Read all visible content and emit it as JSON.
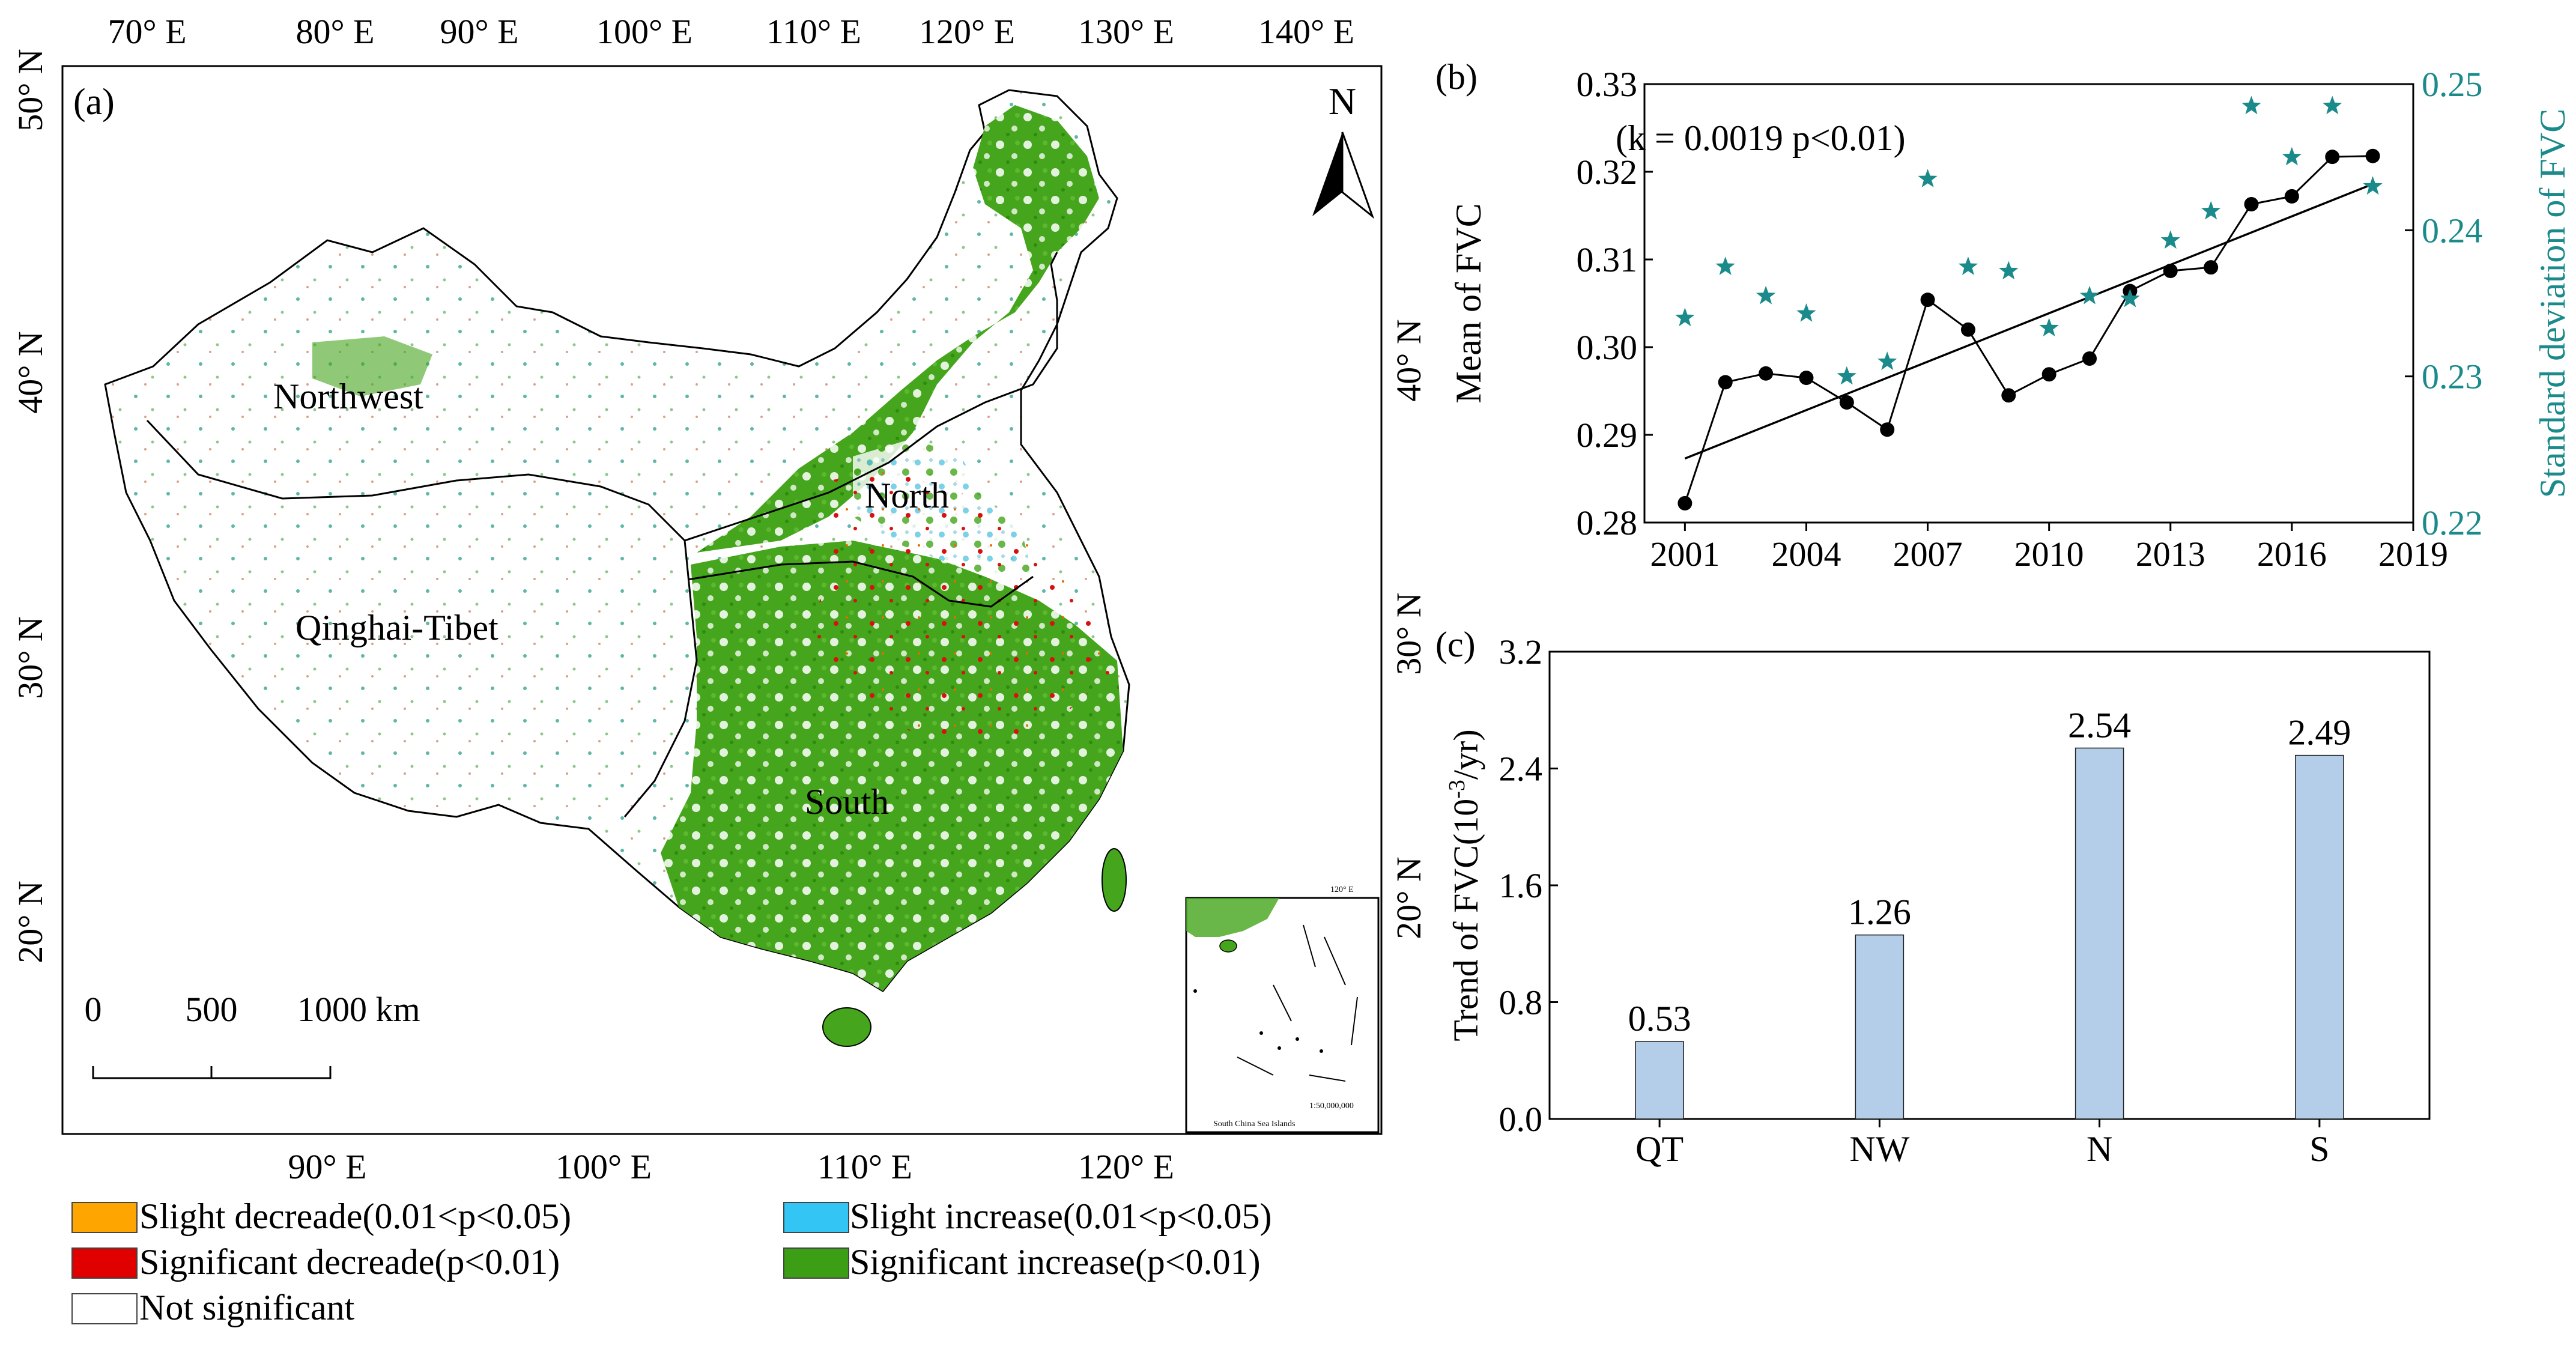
{
  "map_panel": {
    "label": "(a)",
    "north_arrow": "N",
    "top_lon_ticks": [
      "70° E",
      "80° E",
      "90° E",
      "100° E",
      "110° E",
      "120° E",
      "130° E",
      "140° E"
    ],
    "bottom_lon_ticks": [
      "90° E",
      "100° E",
      "110° E",
      "120° E"
    ],
    "left_lat_ticks": [
      "50° N",
      "40° N",
      "30° N",
      "20° N"
    ],
    "right_lat_ticks": [
      "40° N",
      "30° N",
      "20° N"
    ],
    "regions": [
      "Northwest",
      "North",
      "Qinghai-Tibet",
      "South"
    ],
    "scale_bar": {
      "labels": [
        "0",
        "500",
        "1000 km"
      ]
    },
    "inset": {
      "scale_text": "1:50,000,000",
      "caption": "South China Sea Islands",
      "lon_tick": "120° E"
    },
    "legend": [
      {
        "label": "Slight decreade(0.01<p<0.05)",
        "color": "#FFA500"
      },
      {
        "label": "Slight increase(0.01<p<0.05)",
        "color": "#33C6F4"
      },
      {
        "label": "Significant decreade(p<0.01)",
        "color": "#E00000"
      },
      {
        "label": "Significant increase(p<0.01)",
        "color": "#3C9E14"
      },
      {
        "label": "Not significant",
        "color": "#FFFFFF"
      }
    ]
  },
  "chart_data": [
    {
      "panel": "(b)",
      "type": "line",
      "annotation": "(k = 0.0019 p<0.01)",
      "x": [
        2001,
        2002,
        2003,
        2004,
        2005,
        2006,
        2007,
        2008,
        2009,
        2010,
        2011,
        2012,
        2013,
        2014,
        2015,
        2016,
        2017,
        2018
      ],
      "series": [
        {
          "name": "Mean of FVC",
          "axis": "left",
          "marker": "circle",
          "color": "#000000",
          "values": [
            0.2822,
            0.296,
            0.297,
            0.2965,
            0.2937,
            0.2906,
            0.3054,
            0.302,
            0.2945,
            0.2969,
            0.2987,
            0.3064,
            0.3087,
            0.3091,
            0.3163,
            0.3172,
            0.3217,
            0.3218
          ]
        },
        {
          "name": "Standard deviation of FVC",
          "axis": "right",
          "marker": "star",
          "color": "#1B8A8A",
          "values": [
            0.234,
            0.2375,
            0.2355,
            0.2343,
            0.23,
            0.231,
            0.2435,
            0.2375,
            0.2372,
            0.2333,
            0.2355,
            0.2353,
            0.2393,
            0.2413,
            0.2485,
            0.245,
            0.2485,
            0.243
          ]
        },
        {
          "name": "Linear trend",
          "axis": "left",
          "marker": "none",
          "color": "#000000",
          "x": [
            2001,
            2018
          ],
          "values": [
            0.2873,
            0.3186
          ]
        }
      ],
      "xlabel": "",
      "ylabel": "Mean of FVC",
      "y2label": "Standard deviation of FVC",
      "xlim": [
        2000,
        2019
      ],
      "xticks": [
        2001,
        2004,
        2007,
        2010,
        2013,
        2016,
        2019
      ],
      "ylim": [
        0.28,
        0.33
      ],
      "yticks": [
        "0.28",
        "0.29",
        "0.30",
        "0.31",
        "0.32",
        "0.33"
      ],
      "y2lim": [
        0.22,
        0.25
      ],
      "y2ticks": [
        "0.22",
        "0.23",
        "0.24",
        "0.25"
      ]
    },
    {
      "panel": "(c)",
      "type": "bar",
      "categories": [
        "QT",
        "NW",
        "N",
        "S"
      ],
      "values": [
        0.53,
        1.26,
        2.54,
        2.49
      ],
      "data_labels": [
        "0.53",
        "1.26",
        "2.54",
        "2.49"
      ],
      "bar_color": "#B4CDE8",
      "ylabel_main": "Trend of FVC(10",
      "ylabel_sup": "-3",
      "ylabel_tail": "/yr)",
      "ylim": [
        0,
        3.2
      ],
      "yticks": [
        "0.0",
        "0.8",
        "1.6",
        "2.4",
        "3.2"
      ]
    }
  ]
}
